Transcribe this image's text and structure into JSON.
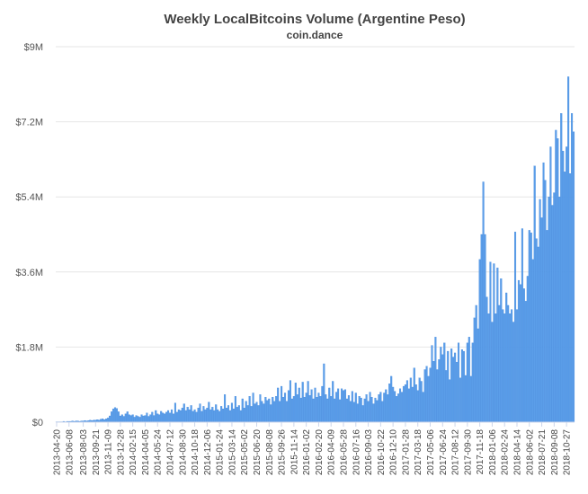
{
  "chart_data": {
    "type": "bar",
    "title": "Weekly LocalBitcoins Volume (Argentine Peso)",
    "subtitle": "coin.dance",
    "color": "#5b9ee9",
    "grid": true,
    "ylim": [
      0,
      9000000
    ],
    "yticks": [
      {
        "value": 0,
        "label": "$0"
      },
      {
        "value": 1800000,
        "label": "$1.8M"
      },
      {
        "value": 3600000,
        "label": "$3.6M"
      },
      {
        "value": 5400000,
        "label": "$5.4M"
      },
      {
        "value": 7200000,
        "label": "$7.2M"
      },
      {
        "value": 9000000,
        "label": "$9M"
      }
    ],
    "categories": [
      "2013-04-20",
      null,
      null,
      null,
      null,
      null,
      null,
      "2013-06-08",
      null,
      null,
      null,
      null,
      null,
      null,
      null,
      "2013-08-03",
      null,
      null,
      null,
      null,
      null,
      null,
      "2013-09-21",
      null,
      null,
      null,
      null,
      null,
      null,
      "2013-11-09",
      null,
      null,
      null,
      null,
      null,
      null,
      "2013-12-28",
      null,
      null,
      null,
      null,
      null,
      null,
      "2014-02-15",
      null,
      null,
      null,
      null,
      null,
      null,
      "2014-04-05",
      null,
      null,
      null,
      null,
      null,
      null,
      "2014-05-24",
      null,
      null,
      null,
      null,
      null,
      null,
      "2014-07-12",
      null,
      null,
      null,
      null,
      null,
      null,
      "2014-08-30",
      null,
      null,
      null,
      null,
      null,
      null,
      "2014-10-18",
      null,
      null,
      null,
      null,
      null,
      null,
      "2014-12-06",
      null,
      null,
      null,
      null,
      null,
      null,
      "2015-01-24",
      null,
      null,
      null,
      null,
      null,
      null,
      "2015-03-14",
      null,
      null,
      null,
      null,
      null,
      null,
      "2015-05-02",
      null,
      null,
      null,
      null,
      null,
      null,
      "2015-06-20",
      null,
      null,
      null,
      null,
      null,
      null,
      "2015-08-08",
      null,
      null,
      null,
      null,
      null,
      null,
      "2015-09-26",
      null,
      null,
      null,
      null,
      null,
      null,
      "2015-11-14",
      null,
      null,
      null,
      null,
      null,
      null,
      "2016-01-02",
      null,
      null,
      null,
      null,
      null,
      null,
      "2016-02-20",
      null,
      null,
      null,
      null,
      null,
      null,
      "2016-04-09",
      null,
      null,
      null,
      null,
      null,
      null,
      "2016-05-28",
      null,
      null,
      null,
      null,
      null,
      null,
      "2016-07-16",
      null,
      null,
      null,
      null,
      null,
      null,
      "2016-09-03",
      null,
      null,
      null,
      null,
      null,
      null,
      "2016-10-22",
      null,
      null,
      null,
      null,
      null,
      null,
      "2016-12-10",
      null,
      null,
      null,
      null,
      null,
      null,
      "2017-01-28",
      null,
      null,
      null,
      null,
      null,
      null,
      "2017-03-18",
      null,
      null,
      null,
      null,
      null,
      null,
      "2017-05-06",
      null,
      null,
      null,
      null,
      null,
      null,
      "2017-06-24",
      null,
      null,
      null,
      null,
      null,
      null,
      "2017-08-12",
      null,
      null,
      null,
      null,
      null,
      null,
      "2017-09-30",
      null,
      null,
      null,
      null,
      null,
      null,
      "2017-11-18",
      null,
      null,
      null,
      null,
      null,
      null,
      "2018-01-06",
      null,
      null,
      null,
      null,
      null,
      null,
      "2018-02-24",
      null,
      null,
      null,
      null,
      null,
      null,
      "2018-04-14",
      null,
      null,
      null,
      null,
      null,
      null,
      "2018-06-02",
      null,
      null,
      null,
      null,
      null,
      null,
      "2018-07-21",
      null,
      null,
      null,
      null,
      null,
      null,
      "2018-09-08",
      null,
      null,
      null,
      null,
      null,
      null,
      "2018-10-27",
      null,
      null,
      null,
      null
    ],
    "values": [
      10000,
      10000,
      10000,
      10000,
      20000,
      10000,
      20000,
      20000,
      20000,
      30000,
      20000,
      30000,
      30000,
      20000,
      30000,
      30000,
      40000,
      30000,
      40000,
      50000,
      40000,
      50000,
      50000,
      60000,
      50000,
      70000,
      80000,
      60000,
      80000,
      100000,
      150000,
      250000,
      320000,
      350000,
      330000,
      250000,
      150000,
      180000,
      140000,
      200000,
      250000,
      180000,
      160000,
      180000,
      120000,
      160000,
      140000,
      120000,
      180000,
      150000,
      160000,
      220000,
      140000,
      180000,
      240000,
      160000,
      280000,
      200000,
      180000,
      260000,
      220000,
      200000,
      240000,
      280000,
      220000,
      300000,
      200000,
      460000,
      240000,
      300000,
      280000,
      340000,
      440000,
      280000,
      360000,
      300000,
      400000,
      260000,
      300000,
      240000,
      340000,
      440000,
      260000,
      380000,
      300000,
      340000,
      480000,
      300000,
      360000,
      280000,
      420000,
      300000,
      260000,
      380000,
      320000,
      660000,
      340000,
      400000,
      280000,
      460000,
      320000,
      620000,
      360000,
      400000,
      280000,
      560000,
      340000,
      500000,
      400000,
      620000,
      380000,
      700000,
      440000,
      480000,
      400000,
      660000,
      500000,
      440000,
      600000,
      520000,
      560000,
      420000,
      600000,
      500000,
      620000,
      820000,
      500000,
      860000,
      600000,
      700000,
      500000,
      760000,
      1000000,
      560000,
      620000,
      940000,
      660000,
      820000,
      580000,
      960000,
      600000,
      700000,
      980000,
      640000,
      780000,
      560000,
      820000,
      600000,
      700000,
      620000,
      860000,
      1400000,
      660000,
      560000,
      820000,
      620000,
      980000,
      560000,
      720000,
      800000,
      540000,
      800000,
      760000,
      780000,
      560000,
      640000,
      500000,
      740000,
      480000,
      700000,
      440000,
      620000,
      580000,
      400000,
      560000,
      660000,
      500000,
      720000,
      600000,
      440000,
      580000,
      520000,
      660000,
      720000,
      500000,
      700000,
      780000,
      660000,
      920000,
      1100000,
      840000,
      740000,
      620000,
      680000,
      800000,
      720000,
      860000,
      900000,
      1000000,
      800000,
      1060000,
      840000,
      1300000,
      900000,
      760000,
      1060000,
      980000,
      720000,
      1260000,
      1340000,
      1100000,
      1300000,
      1840000,
      1460000,
      2040000,
      1260000,
      1500000,
      1800000,
      1620000,
      1900000,
      1240000,
      1700000,
      1020000,
      1760000,
      1560000,
      1660000,
      1440000,
      1900000,
      1060000,
      1740000,
      1700000,
      1120000,
      1900000,
      2040000,
      1100000,
      1900000,
      2500000,
      2800000,
      2240000,
      3900000,
      4500000,
      5760000,
      4500000,
      3000000,
      2600000,
      3840000,
      2400000,
      3800000,
      2600000,
      3700000,
      2800000,
      3440000,
      2700000,
      2600000,
      3100000,
      2800000,
      2600000,
      2700000,
      2400000,
      4560000,
      2700000,
      3400000,
      3300000,
      4640000,
      3200000,
      2900000,
      3500000,
      4600000,
      4540000,
      3900000,
      6140000,
      4400000,
      4200000,
      5340000,
      4900000,
      6220000,
      5800000,
      4600000,
      5400000,
      6600000,
      5200000,
      5500000,
      7000000,
      6800000,
      5400000,
      7400000,
      6500000,
      6000000,
      6600000,
      8280000,
      5960000,
      7400000,
      6960000
    ]
  }
}
